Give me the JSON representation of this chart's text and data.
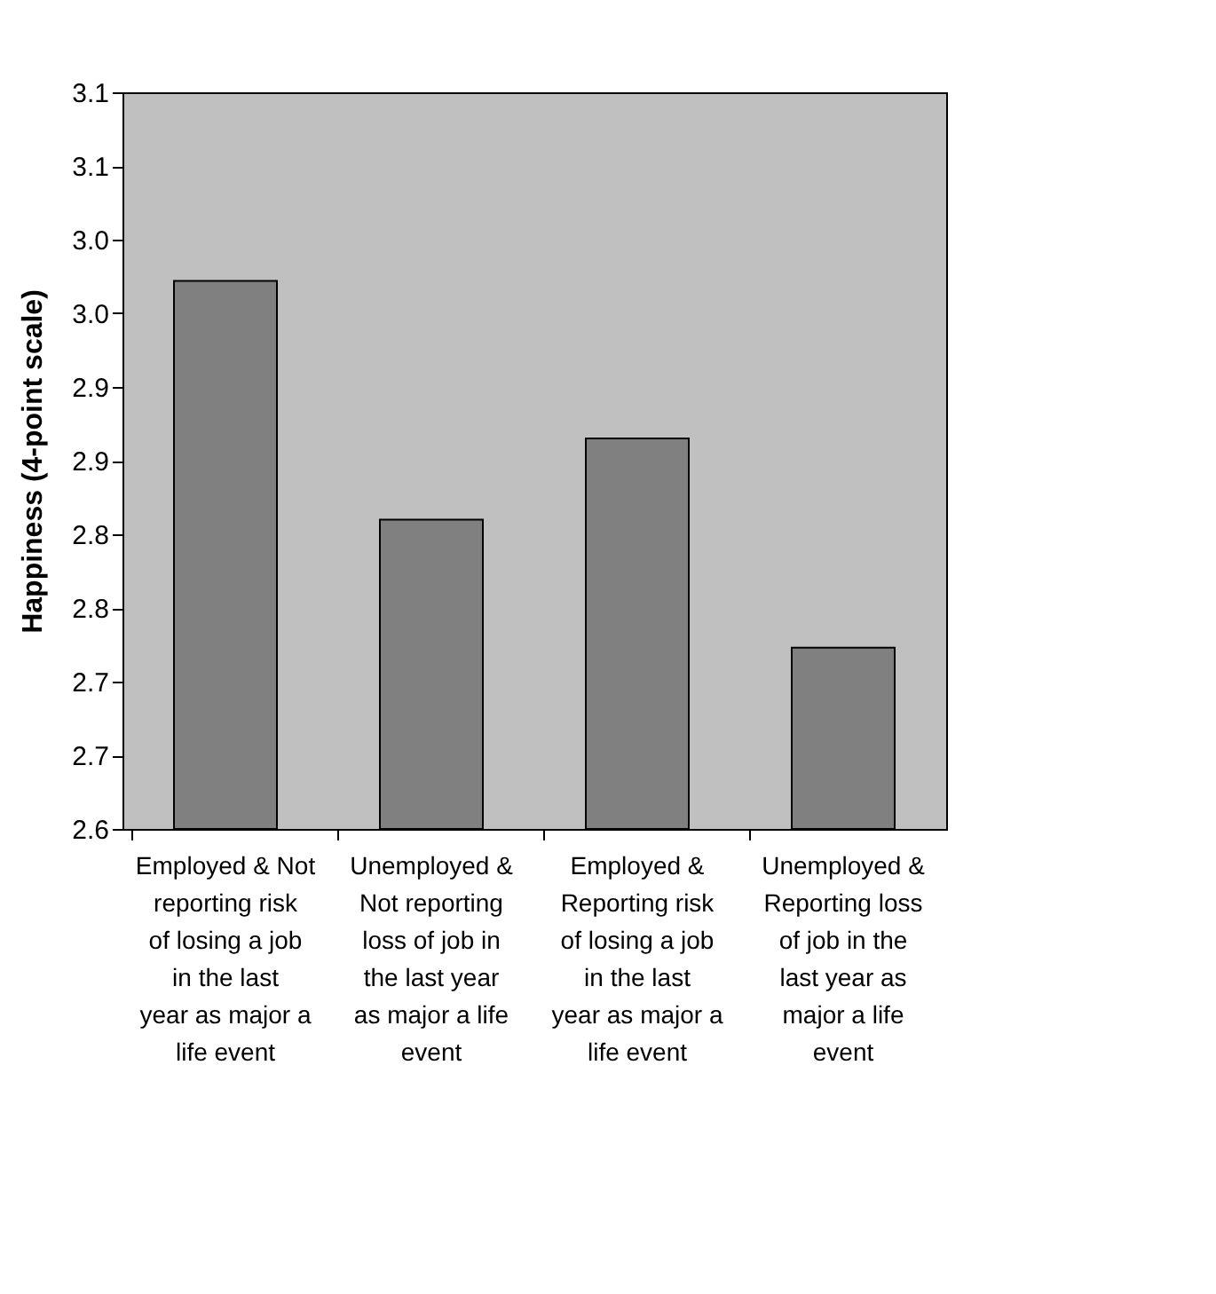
{
  "chart_data": {
    "type": "bar",
    "ylabel": "Happiness (4-point scale)",
    "categories": [
      "Employed & Not reporting risk of losing a job in the last year as major a life event",
      "Unemployed & Not reporting loss of job in the last year as major a life event",
      "Employed & Reporting risk of losing a job in the last year as major a life event",
      "Unemployed & Reporting loss of job in the last year as major a life event"
    ],
    "values": [
      2.972,
      2.81,
      2.865,
      2.723
    ],
    "color": "#808080",
    "ylim": [
      2.6,
      3.1
    ],
    "yticks": [
      2.6,
      {
        "value": 2.65,
        "label": "2.7"
      },
      2.7,
      {
        "value": 2.75,
        "label": "2.8"
      },
      2.8,
      {
        "value": 2.85,
        "label": "2.9"
      },
      2.9,
      {
        "value": 2.95,
        "label": "3.0"
      },
      {
        "value": 3.0,
        "label": "3.0"
      },
      {
        "value": 3.05,
        "label": "3.1"
      },
      3.1
    ],
    "grid": false
  }
}
